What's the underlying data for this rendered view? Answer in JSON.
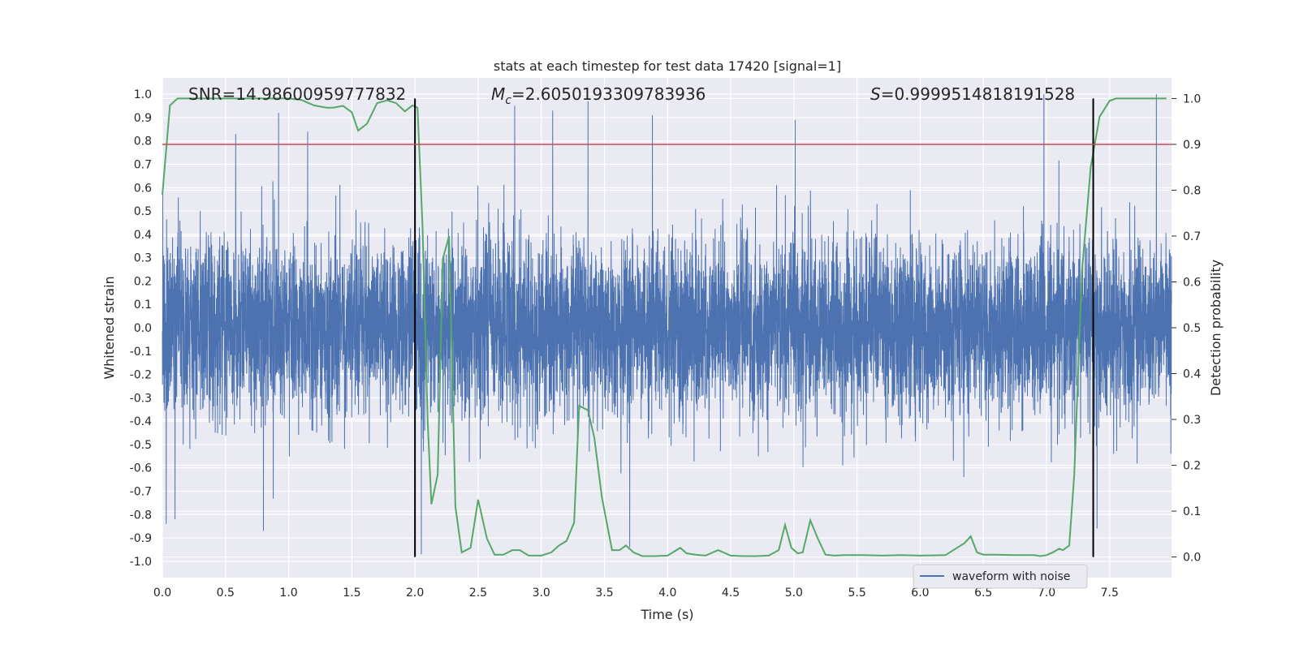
{
  "chart_data": {
    "type": "line",
    "title": "stats at each timestep for test data 17420 [signal=1]",
    "xlabel": "Time (s)",
    "ylabel": "Whitened strain",
    "y2label": "Detection probability",
    "xlim": [
      0.0,
      7.99
    ],
    "ylim": [
      -1.07,
      1.07
    ],
    "y2lim": [
      -0.045,
      1.045
    ],
    "xticks": [
      "0.0",
      "0.5",
      "1.0",
      "1.5",
      "2.0",
      "2.5",
      "3.0",
      "3.5",
      "4.0",
      "4.5",
      "5.0",
      "5.5",
      "6.0",
      "6.5",
      "7.0",
      "7.5"
    ],
    "yticks": [
      "-1.0",
      "-0.9",
      "-0.8",
      "-0.7",
      "-0.6",
      "-0.5",
      "-0.4",
      "-0.3",
      "-0.2",
      "-0.1",
      "0.0",
      "0.1",
      "0.2",
      "0.3",
      "0.4",
      "0.5",
      "0.6",
      "0.7",
      "0.8",
      "0.9",
      "1.0"
    ],
    "y2ticks": [
      "0.0",
      "0.1",
      "0.2",
      "0.3",
      "0.4",
      "0.5",
      "0.6",
      "0.7",
      "0.8",
      "0.9",
      "1.0"
    ],
    "annotations": {
      "snr": "SNR=14.98600959777832",
      "mc_symbol": "M",
      "mc_sub": "c",
      "mc_value": "=2.6050193309783936",
      "s_symbol": "S",
      "s_value": "=0.9999514818191528"
    },
    "threshold": {
      "axis": "right",
      "value": 0.9,
      "color": "#c44e52"
    },
    "vertical_markers": [
      2.0,
      7.37
    ],
    "series": [
      {
        "name": "waveform with noise",
        "axis": "left",
        "color": "#4c72b0",
        "sample_rate": 2048,
        "duration": 7.99,
        "envelope_approx": 0.42,
        "typical_peak": 0.65,
        "max_abs": 1.0,
        "notable_peaks": [
          {
            "t": 0.92,
            "v": 0.92
          },
          {
            "t": 1.15,
            "v": 0.84
          },
          {
            "t": 0.58,
            "v": 0.83
          },
          {
            "t": 2.79,
            "v": 0.95
          },
          {
            "t": 3.09,
            "v": 0.93
          },
          {
            "t": 3.37,
            "v": 0.97
          },
          {
            "t": 3.88,
            "v": 0.91
          },
          {
            "t": 5.01,
            "v": 0.89
          },
          {
            "t": 6.98,
            "v": 1.0
          },
          {
            "t": 7.87,
            "v": 1.0
          },
          {
            "t": 0.03,
            "v": -0.84
          },
          {
            "t": 0.1,
            "v": -0.82
          },
          {
            "t": 0.8,
            "v": -0.87
          },
          {
            "t": 2.05,
            "v": -0.97
          },
          {
            "t": 3.7,
            "v": -0.94
          },
          {
            "t": 7.4,
            "v": -0.86
          }
        ]
      },
      {
        "name": "detection probability",
        "axis": "right",
        "color": "#55a868",
        "x": [
          0.0,
          0.06,
          0.12,
          0.18,
          0.3,
          0.5,
          1.0,
          1.1,
          1.2,
          1.3,
          1.35,
          1.43,
          1.5,
          1.55,
          1.62,
          1.7,
          1.78,
          1.85,
          1.92,
          1.98,
          2.02,
          2.06,
          2.1,
          2.13,
          2.18,
          2.22,
          2.27,
          2.32,
          2.37,
          2.44,
          2.5,
          2.57,
          2.63,
          2.7,
          2.77,
          2.83,
          2.9,
          3.0,
          3.08,
          3.14,
          3.2,
          3.26,
          3.3,
          3.37,
          3.42,
          3.48,
          3.56,
          3.62,
          3.67,
          3.73,
          3.8,
          3.9,
          4.0,
          4.1,
          4.15,
          4.22,
          4.3,
          4.4,
          4.5,
          4.6,
          4.7,
          4.8,
          4.88,
          4.93,
          4.98,
          5.03,
          5.07,
          5.13,
          5.19,
          5.25,
          5.32,
          5.4,
          5.55,
          5.7,
          5.85,
          6.0,
          6.2,
          6.35,
          6.4,
          6.45,
          6.5,
          6.6,
          6.75,
          6.9,
          6.95,
          7.0,
          7.05,
          7.1,
          7.13,
          7.18,
          7.22,
          7.28,
          7.35,
          7.42,
          7.5,
          7.55,
          7.65,
          7.8,
          7.9,
          7.95
        ],
        "y": [
          0.79,
          0.985,
          1.0,
          1.0,
          1.0,
          1.0,
          1.0,
          0.997,
          0.985,
          0.98,
          0.98,
          0.984,
          0.97,
          0.93,
          0.945,
          0.99,
          0.996,
          0.99,
          0.972,
          0.985,
          0.98,
          0.72,
          0.3,
          0.115,
          0.18,
          0.65,
          0.7,
          0.11,
          0.01,
          0.02,
          0.125,
          0.04,
          0.005,
          0.005,
          0.015,
          0.015,
          0.003,
          0.003,
          0.01,
          0.025,
          0.035,
          0.075,
          0.33,
          0.32,
          0.26,
          0.13,
          0.015,
          0.015,
          0.025,
          0.01,
          0.002,
          0.002,
          0.003,
          0.02,
          0.008,
          0.005,
          0.003,
          0.015,
          0.003,
          0.002,
          0.002,
          0.003,
          0.015,
          0.07,
          0.02,
          0.008,
          0.01,
          0.08,
          0.04,
          0.005,
          0.003,
          0.004,
          0.004,
          0.003,
          0.004,
          0.003,
          0.004,
          0.03,
          0.045,
          0.01,
          0.005,
          0.005,
          0.004,
          0.004,
          0.002,
          0.004,
          0.01,
          0.018,
          0.015,
          0.025,
          0.18,
          0.62,
          0.85,
          0.96,
          0.995,
          1.0,
          1.0,
          1.0,
          1.0,
          1.0
        ]
      }
    ],
    "legend": {
      "location": "lower-right",
      "entries": [
        "waveform with noise"
      ]
    }
  }
}
